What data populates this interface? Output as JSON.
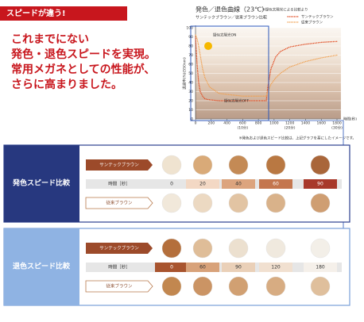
{
  "banner": "スピードが違う!",
  "headline": [
    "これまでにない",
    "発色・退色スピードを実現。",
    "常用メガネとしての性能が、",
    "さらに高まりました。"
  ],
  "chart_data": {
    "type": "line",
    "title": "発色／退色曲線（23℃）",
    "note": "※疑似太陽光による比較より",
    "subtitle": "サンテックブラウン／従来ブラウン比較",
    "y_label": "透過率(%)(550nm)",
    "x_label": "時間(秒)",
    "annotations": [
      "疑似太陽光ON",
      "疑似太陽光OFF"
    ],
    "x": [
      0,
      20,
      40,
      60,
      90,
      120,
      180,
      300,
      600,
      900,
      920,
      960,
      1020,
      1080,
      1200,
      1400,
      1600,
      1800
    ],
    "series": [
      {
        "name": "サンテックブラウン",
        "color": "#e0481e",
        "values": [
          90,
          60,
          40,
          30,
          25,
          22,
          21,
          20,
          20,
          20,
          35,
          55,
          68,
          74,
          79,
          82,
          84,
          85
        ]
      },
      {
        "name": "従来ブラウン",
        "color": "#f0a050",
        "values": [
          92,
          88,
          80,
          70,
          55,
          45,
          35,
          28,
          25,
          25,
          30,
          38,
          45,
          50,
          57,
          63,
          67,
          70
        ]
      }
    ],
    "xlim": [
      0,
      1850
    ],
    "ylim": [
      0,
      100
    ],
    "xticks": [
      0,
      200,
      400,
      {
        "value": 600,
        "label": "600",
        "note": "(10分)"
      },
      800,
      1000,
      {
        "value": 1200,
        "label": "1200",
        "note": "(20分)"
      },
      1400,
      1600,
      {
        "value": 1800,
        "label": "1800",
        "note": "(30分)"
      }
    ],
    "yticks": [
      0,
      10,
      20,
      30,
      40,
      50,
      60,
      70,
      80,
      90,
      100
    ]
  },
  "panels": [
    {
      "title": "発色スピード比較",
      "product": "サンテックブラウン",
      "time_label": "時間［秒］",
      "times": [
        0,
        20,
        40,
        60,
        90
      ],
      "conventional": "従来ブラウン",
      "product_colors": [
        "#efe3d0",
        "#d9aa78",
        "#c48a55",
        "#b97842",
        "#a9663a"
      ],
      "conventional_colors": [
        "#f1e8da",
        "#ecd9c2",
        "#e2c4a3",
        "#d9b28a",
        "#cf9e72"
      ],
      "time_colors": [
        "#e6e6e6",
        "#f3d8c4",
        "#dca47e",
        "#c4764e",
        "#a8382a"
      ]
    },
    {
      "title": "退色スピード比較",
      "product": "サンテックブラウン",
      "time_label": "時間［秒］",
      "times": [
        0,
        60,
        90,
        120,
        180
      ],
      "conventional": "従来ブラウン",
      "product_colors": [
        "#b46f3c",
        "#dfbd98",
        "#ece0cf",
        "#f0e9de",
        "#f3efe8"
      ],
      "conventional_colors": [
        "#c2874f",
        "#cb9464",
        "#d1a072",
        "#d7ac82",
        "#dfbf9c"
      ],
      "time_colors": [
        "#a8542e",
        "#d8a27a",
        "#ead0b8",
        "#f1e0d0",
        "#f5f0ea"
      ]
    }
  ],
  "footnote": "※発色および退色スピード比較は、上記グラフを基にしたイメージです。"
}
